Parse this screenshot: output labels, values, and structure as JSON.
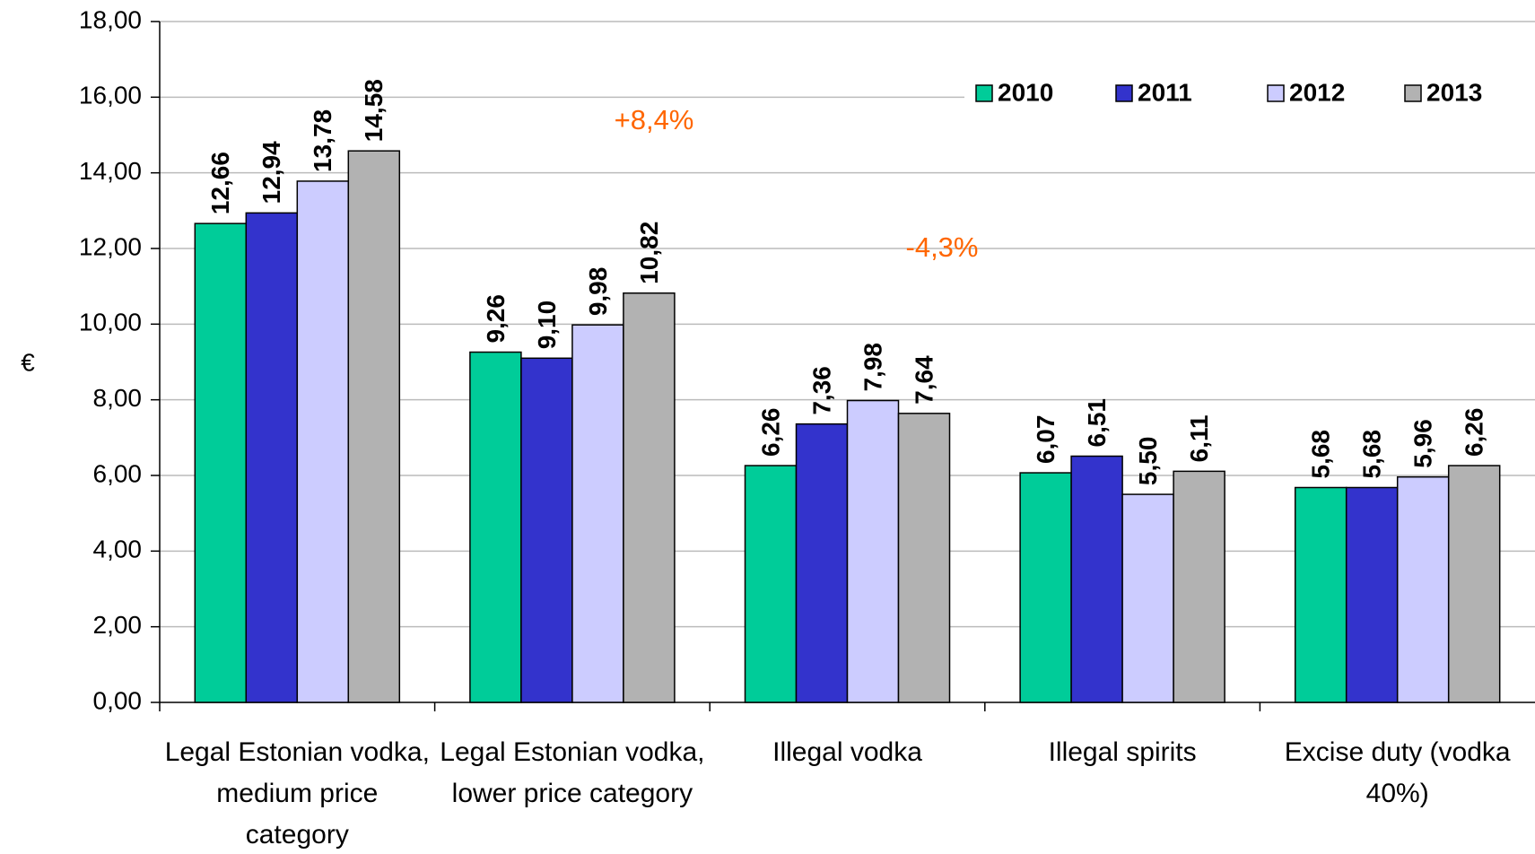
{
  "chart_data": {
    "type": "bar",
    "y_label": "€",
    "categories": [
      "Legal Estonian vodka, medium price category",
      "Legal Estonian vodka, lower price category",
      "Illegal vodka",
      "Illegal spirits",
      "Excise duty (vodka 40%)"
    ],
    "series": [
      {
        "name": "2010",
        "color": "#00cc99",
        "values": [
          12.66,
          9.26,
          6.26,
          6.07,
          5.68
        ],
        "value_labels": [
          "12,66",
          "9,26",
          "6,26",
          "6,07",
          "5,68"
        ]
      },
      {
        "name": "2011",
        "color": "#3333cc",
        "values": [
          12.94,
          9.1,
          7.36,
          6.51,
          5.68
        ],
        "value_labels": [
          "12,94",
          "9,10",
          "7,36",
          "6,51",
          "5,68"
        ]
      },
      {
        "name": "2012",
        "color": "#ccccff",
        "values": [
          13.78,
          9.98,
          7.98,
          5.5,
          5.96
        ],
        "value_labels": [
          "13,78",
          "9,98",
          "7,98",
          "5,50",
          "5,96"
        ]
      },
      {
        "name": "2013",
        "color": "#b2b2b2",
        "values": [
          14.58,
          10.82,
          7.64,
          6.11,
          6.26
        ],
        "value_labels": [
          "14,58",
          "10,82",
          "7,64",
          "6,11",
          "6,26"
        ]
      }
    ],
    "annotations": [
      "+8,4%",
      "-4,3%"
    ],
    "annotation_color": "#ff6600",
    "ylim": [
      0,
      18
    ],
    "yticks": [
      {
        "value": 0,
        "label": "0,00"
      },
      {
        "value": 2,
        "label": "2,00"
      },
      {
        "value": 4,
        "label": "4,00"
      },
      {
        "value": 6,
        "label": "6,00"
      },
      {
        "value": 8,
        "label": "8,00"
      },
      {
        "value": 10,
        "label": "10,00"
      },
      {
        "value": 12,
        "label": "12,00"
      },
      {
        "value": 14,
        "label": "14,00"
      },
      {
        "value": 16,
        "label": "16,00"
      },
      {
        "value": 18,
        "label": "18,00"
      }
    ],
    "grid": true,
    "legend": "top-right"
  }
}
